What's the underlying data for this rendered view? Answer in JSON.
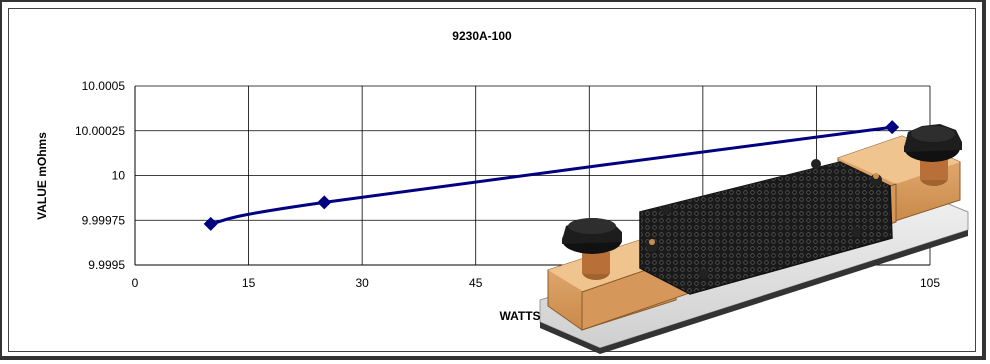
{
  "chart_data": {
    "type": "line",
    "title": "9230A-100",
    "xlabel": "WATTS",
    "ylabel": "VALUE mOhms",
    "xlim": [
      0,
      105
    ],
    "ylim": [
      9.9995,
      10.0005
    ],
    "x_ticks": [
      "0",
      "15",
      "30",
      "45",
      "105"
    ],
    "y_ticks": [
      "10.0005",
      "10.00025",
      "10",
      "9.99975",
      "9.9995"
    ],
    "grid": true,
    "series": [
      {
        "color": "#000080",
        "x": [
          10,
          25,
          100
        ],
        "y": [
          9.99973,
          9.99985,
          10.00027
        ]
      }
    ]
  },
  "photo": {
    "icon": "shunt-resistor-photo"
  }
}
